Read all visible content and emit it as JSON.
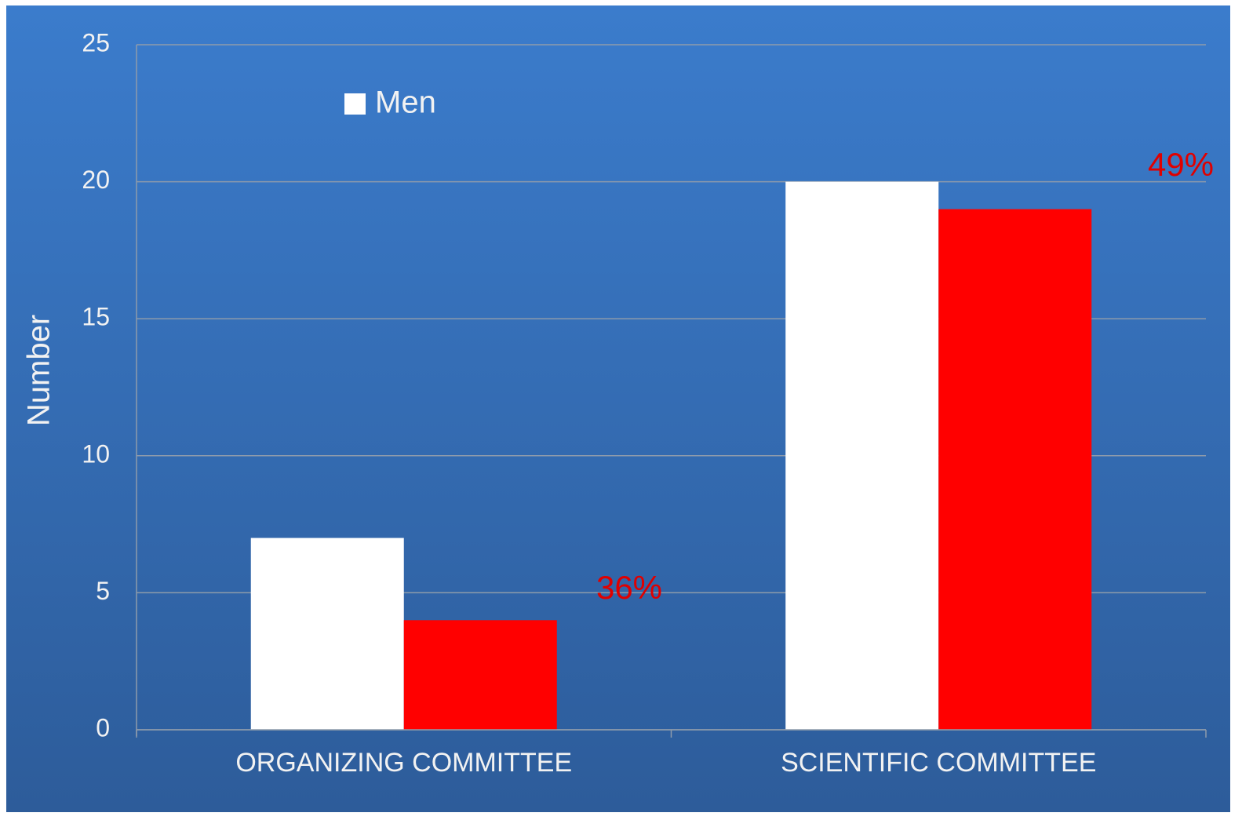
{
  "chart_data": {
    "type": "bar",
    "y_label": "Number",
    "categories": [
      "ORGANIZING COMMITTEE",
      "SCIENTIFIC COMMITTEE"
    ],
    "series": [
      {
        "name": "Men",
        "color": "#ffffff",
        "values": [
          7,
          20
        ]
      },
      {
        "color": "#ff0000",
        "values": [
          4,
          19
        ]
      }
    ],
    "annotations": [
      "36%",
      "49%"
    ],
    "annotation_color": "#e00000",
    "ylim": [
      0,
      25
    ],
    "yticks": [
      0,
      5,
      10,
      15,
      20,
      25
    ],
    "grid": true
  }
}
